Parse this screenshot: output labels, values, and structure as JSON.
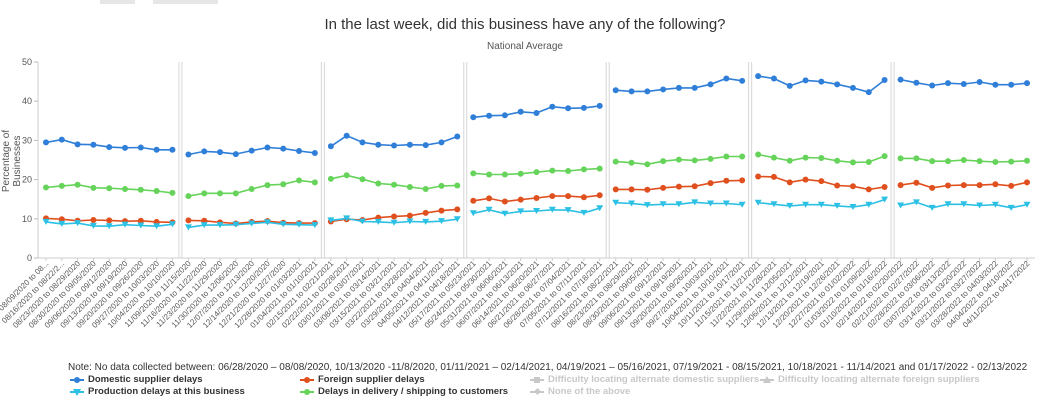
{
  "title": "In the last week, did this business have any of the following?",
  "subtitle": "National Average",
  "note": "Note: No data collected between: 06/28/2020 – 08/08/2020, 10/13/2020 -11/8/2020, 01/11/2021 – 02/14/2021, 04/19/2021 – 05/16/2021, 07/19/2021 - 08/15/2021, 10/18/2021 - 11/14/2021 and 01/17/2022 - 02/13/2022",
  "chart_data": {
    "type": "line",
    "ylabel": "Percentage of Businesses",
    "ylim": [
      0,
      50
    ],
    "yticks": [
      0,
      10,
      20,
      30,
      40,
      50
    ],
    "grid": false,
    "legend_position": "bottom",
    "x": [
      "08/09/2020 to 08...",
      "08/16/2020 to 08/22/2...",
      "08/23/2020 to 08/29/2020",
      "08/30/2020 to 09/05/2020",
      "09/06/2020 to 09/12/2020",
      "09/13/2020 to 09/19/2020",
      "09/20/2020 to 09/26/2020",
      "09/27/2020 to 10/03/2020",
      "10/04/2020 to 10/10/2020",
      "11/09/2020 to 11/15/2020",
      "11/16/2020 to 11/22/2020",
      "11/23/2020 to 11/29/2020",
      "11/30/2020 to 12/06/2020",
      "12/07/2020 to 12/13/2020",
      "12/14/2020 to 12/20/2020",
      "12/21/2020 to 12/27/2020",
      "12/28/2020 to 01/03/2021",
      "01/04/2021 to 01/10/2021",
      "02/15/2021 to 02/21/2021",
      "02/22/2021 to 02/28/2021",
      "03/01/2021 to 03/07/2021",
      "03/08/2021 to 03/14/2021",
      "03/15/2021 to 03/21/2021",
      "03/22/2021 to 03/28/2021",
      "03/29/2021 to 04/04/2021",
      "04/05/2021 to 04/11/2021",
      "04/12/2021 to 04/18/2021",
      "05/17/2021 to 05/23/2021",
      "05/24/2021 to 05/30/2021",
      "05/31/2021 to 06/06/2021",
      "06/07/2021 to 06/13/2021",
      "06/14/2021 to 06/20/2021",
      "06/21/2021 to 06/27/2021",
      "06/28/2021 to 07/04/2021",
      "07/05/2021 to 07/11/2021",
      "07/12/2021 to 07/18/2021",
      "08/16/2021 to 08/22/2021",
      "08/23/2021 to 08/29/2021",
      "08/30/2021 to 09/05/2021",
      "09/06/2021 to 09/12/2021",
      "09/13/2021 to 09/19/2021",
      "09/20/2021 to 09/26/2021",
      "09/27/2021 to 10/03/2021",
      "10/04/2021 to 10/10/2021",
      "10/11/2021 to 10/17/2021",
      "11/15/2021 to 11/21/2021",
      "11/22/2021 to 11/28/2021",
      "11/29/2021 to 12/05/2021",
      "12/06/2021 to 12/12/2021",
      "12/13/2021 to 12/19/2021",
      "12/20/2021 to 12/26/2021",
      "12/27/2021 to 01/02/2022",
      "01/03/2022 to 01/09/2022",
      "01/10/2022 to 01/16/2022",
      "02/14/2022 to 02/20/2022",
      "02/21/2022 to 02/27/2022",
      "02/28/2022 to 03/06/2022",
      "03/07/2022 to 03/13/2022",
      "03/14/2022 to 03/20/2022",
      "03/21/2022 to 03/27/2022",
      "03/28/2022 to 04/03/2022",
      "04/04/2022 to 04/10/2022",
      "04/11/2022 to 04/17/2022"
    ],
    "segments": [
      9,
      9,
      9,
      9,
      9,
      9,
      9
    ],
    "series": [
      {
        "name": "Domestic supplier delays",
        "color": "#2f7ed8",
        "values": [
          29.5,
          30.2,
          29.0,
          28.9,
          28.3,
          28.1,
          28.2,
          27.6,
          27.6,
          26.4,
          27.2,
          27.0,
          26.5,
          27.4,
          28.2,
          27.9,
          27.3,
          26.8,
          28.5,
          31.2,
          29.5,
          28.9,
          28.7,
          28.9,
          28.8,
          29.5,
          31.0,
          35.9,
          36.3,
          36.4,
          37.3,
          37.0,
          38.6,
          38.2,
          38.3,
          38.8,
          42.8,
          42.5,
          42.5,
          43.0,
          43.4,
          43.4,
          44.3,
          45.8,
          45.2,
          46.4,
          45.8,
          43.9,
          45.3,
          45.0,
          44.3,
          43.4,
          42.3,
          45.4,
          45.5,
          44.7,
          44.0,
          44.6,
          44.4,
          44.9,
          44.2,
          44.2,
          44.6
        ],
        "visible": true
      },
      {
        "name": "Foreign supplier delays",
        "color": "#e0501f",
        "values": [
          10.1,
          9.9,
          9.5,
          9.7,
          9.6,
          9.4,
          9.5,
          9.2,
          9.1,
          9.6,
          9.5,
          9.1,
          8.8,
          9.2,
          9.4,
          9.0,
          8.9,
          8.9,
          9.3,
          9.9,
          9.7,
          10.3,
          10.6,
          10.8,
          11.5,
          12.1,
          12.4,
          14.6,
          15.2,
          14.4,
          14.9,
          15.3,
          15.8,
          15.8,
          15.5,
          16.0,
          17.5,
          17.5,
          17.4,
          17.9,
          18.2,
          18.3,
          19.1,
          19.7,
          19.8,
          20.8,
          20.7,
          19.3,
          20.0,
          19.6,
          18.5,
          18.3,
          17.5,
          18.1,
          18.6,
          19.2,
          17.9,
          18.5,
          18.6,
          18.6,
          18.8,
          18.4,
          19.3
        ],
        "visible": true
      },
      {
        "name": "Production delays at this business",
        "color": "#2bc0e4",
        "values": [
          9.2,
          8.7,
          8.9,
          8.2,
          8.1,
          8.5,
          8.3,
          8.1,
          8.6,
          7.8,
          8.4,
          8.4,
          8.5,
          8.8,
          9.1,
          8.6,
          8.5,
          8.4,
          9.6,
          10.1,
          9.3,
          9.2,
          9.0,
          9.3,
          9.2,
          9.4,
          9.9,
          11.4,
          12.3,
          11.3,
          11.9,
          12.0,
          12.3,
          12.2,
          11.5,
          12.7,
          14.1,
          13.9,
          13.5,
          13.7,
          13.7,
          14.2,
          13.9,
          13.9,
          13.6,
          14.1,
          13.7,
          13.3,
          13.6,
          13.6,
          13.3,
          13.0,
          13.6,
          14.9,
          13.4,
          14.2,
          12.8,
          13.7,
          13.7,
          13.4,
          13.6,
          12.8,
          13.6
        ],
        "visible": true
      },
      {
        "name": "Delays in delivery / shipping to customers",
        "color": "#66d35a",
        "values": [
          18.0,
          18.4,
          18.7,
          17.9,
          17.8,
          17.6,
          17.4,
          17.1,
          16.6,
          15.8,
          16.5,
          16.5,
          16.5,
          17.6,
          18.6,
          18.8,
          19.8,
          19.3,
          20.2,
          21.1,
          20.1,
          19.0,
          18.7,
          18.1,
          17.6,
          18.4,
          18.5,
          21.6,
          21.3,
          21.3,
          21.5,
          21.9,
          22.3,
          22.2,
          22.6,
          22.8,
          24.6,
          24.3,
          23.9,
          24.7,
          25.1,
          24.9,
          25.3,
          25.9,
          25.9,
          26.4,
          25.6,
          24.8,
          25.6,
          25.5,
          24.8,
          24.4,
          24.5,
          26.0,
          25.4,
          25.4,
          24.7,
          24.7,
          25.0,
          24.7,
          24.5,
          24.6,
          24.8
        ],
        "visible": true
      },
      {
        "name": "Difficulty locating alternate domestic suppliers",
        "color": "#c8c8c8",
        "visible": false
      },
      {
        "name": "Difficulty locating alternate foreign suppliers",
        "color": "#c8c8c8",
        "visible": false
      },
      {
        "name": "None of the above",
        "color": "#c8c8c8",
        "visible": false
      }
    ]
  }
}
